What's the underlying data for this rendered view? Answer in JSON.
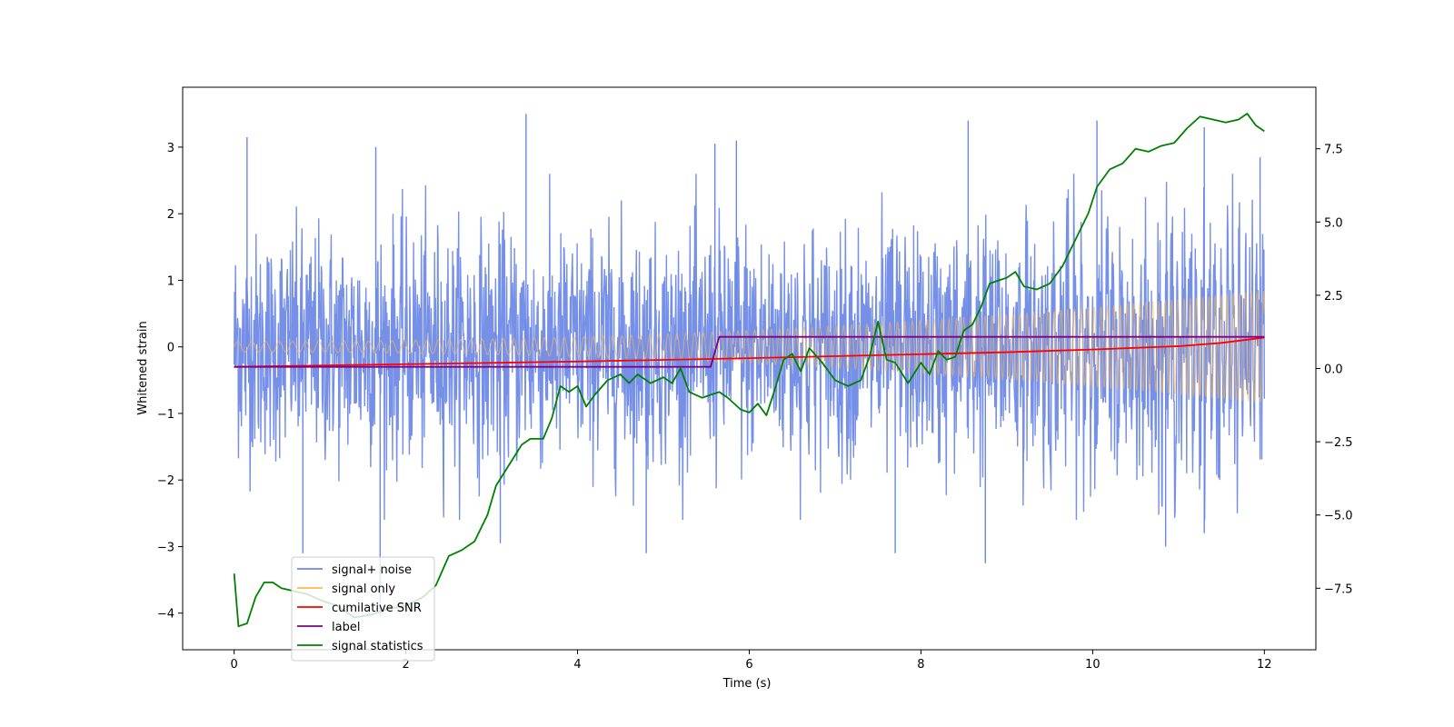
{
  "chart_data": {
    "type": "line",
    "title": "",
    "xlabel": "Time (s)",
    "ylabel": "Whitened strain",
    "y2label": "",
    "xlim": [
      -0.6,
      12.6
    ],
    "ylim": [
      -4.55,
      3.9
    ],
    "y2lim": [
      -9.6,
      9.6
    ],
    "x_ticks": [
      0,
      2,
      4,
      6,
      8,
      10,
      12
    ],
    "x_tick_labels": [
      "0",
      "2",
      "4",
      "6",
      "8",
      "10",
      "12"
    ],
    "y_ticks": [
      -4,
      -3,
      -2,
      -1,
      0,
      1,
      2,
      3
    ],
    "y_tick_labels": [
      "−4",
      "−3",
      "−2",
      "−1",
      "0",
      "1",
      "2",
      "3"
    ],
    "y2_ticks": [
      -7.5,
      -5.0,
      -2.5,
      0.0,
      2.5,
      5.0,
      7.5
    ],
    "y2_tick_labels": [
      "−7.5",
      "−5.0",
      "−2.5",
      "0.0",
      "2.5",
      "5.0",
      "7.5"
    ],
    "grid": false,
    "legend": {
      "placement": "lower-left",
      "entries": [
        {
          "label": "signal+ noise",
          "color": "#6a87e6"
        },
        {
          "label": "signal only",
          "color": "#ffb84d"
        },
        {
          "label": "cumilative SNR",
          "color": "#ff0000"
        },
        {
          "label": "label",
          "color": "#800080"
        },
        {
          "label": "signal statistics",
          "color": "#008000"
        }
      ]
    },
    "series": [
      {
        "name": "signal+ noise",
        "axis": "left",
        "color": "#6a87e6",
        "description_visible": "dense noise trace between about -3.2 and 3.5",
        "t_range": [
          0,
          12
        ],
        "spike_highs": [
          [
            0.15,
            3.15
          ],
          [
            1.65,
            3.0
          ],
          [
            3.4,
            3.5
          ],
          [
            5.6,
            3.05
          ],
          [
            5.85,
            3.1
          ],
          [
            8.55,
            3.4
          ],
          [
            10.05,
            3.4
          ],
          [
            11.3,
            3.3
          ],
          [
            11.95,
            2.85
          ]
        ],
        "spike_lows": [
          [
            0.8,
            -3.1
          ],
          [
            1.7,
            -4.05
          ],
          [
            3.1,
            -2.95
          ],
          [
            4.8,
            -3.1
          ],
          [
            7.7,
            -3.1
          ],
          [
            8.75,
            -3.25
          ],
          [
            10.85,
            -3.0
          ],
          [
            11.3,
            -2.8
          ]
        ]
      },
      {
        "name": "signal only",
        "axis": "left",
        "color": "#ffb84d",
        "description_visible": "chirp oscillation, amplitude growing from about 0.1 to 0.8",
        "t_range": [
          0,
          12
        ],
        "amplitude_start": 0.08,
        "amplitude_end": 0.85
      },
      {
        "name": "cumilative SNR",
        "axis": "left",
        "color": "#ff0000",
        "x": [
          0,
          2,
          4,
          6,
          8,
          9,
          10,
          11,
          11.5,
          12
        ],
        "y": [
          -0.3,
          -0.26,
          -0.22,
          -0.17,
          -0.11,
          -0.08,
          -0.04,
          0.01,
          0.06,
          0.14
        ]
      },
      {
        "name": "label",
        "axis": "left",
        "color": "#800080",
        "x": [
          0,
          5.55,
          5.65,
          12
        ],
        "y": [
          -0.3,
          -0.3,
          0.15,
          0.15
        ]
      },
      {
        "name": "signal statistics",
        "axis": "right",
        "color": "#008000",
        "x": [
          0,
          0.05,
          0.15,
          0.25,
          0.35,
          0.45,
          0.55,
          0.7,
          0.85,
          1.0,
          1.2,
          1.4,
          1.6,
          1.8,
          2.0,
          2.2,
          2.35,
          2.5,
          2.65,
          2.8,
          2.95,
          3.05,
          3.2,
          3.35,
          3.45,
          3.6,
          3.7,
          3.8,
          3.9,
          4.0,
          4.1,
          4.2,
          4.35,
          4.5,
          4.6,
          4.7,
          4.85,
          5.0,
          5.1,
          5.2,
          5.3,
          5.45,
          5.55,
          5.65,
          5.75,
          5.9,
          6.0,
          6.1,
          6.2,
          6.3,
          6.4,
          6.5,
          6.6,
          6.7,
          6.85,
          7.0,
          7.15,
          7.3,
          7.4,
          7.5,
          7.6,
          7.7,
          7.85,
          8.0,
          8.1,
          8.2,
          8.3,
          8.4,
          8.5,
          8.6,
          8.7,
          8.8,
          8.9,
          9.0,
          9.1,
          9.2,
          9.35,
          9.5,
          9.65,
          9.8,
          9.95,
          10.05,
          10.2,
          10.35,
          10.5,
          10.65,
          10.8,
          10.95,
          11.1,
          11.25,
          11.4,
          11.55,
          11.7,
          11.8,
          11.9,
          12.0
        ],
        "y": [
          -7.0,
          -8.8,
          -8.7,
          -7.8,
          -7.3,
          -7.3,
          -7.5,
          -7.6,
          -7.7,
          -7.9,
          -8.1,
          -8.5,
          -8.4,
          -8.2,
          -8.1,
          -7.8,
          -7.4,
          -6.4,
          -6.2,
          -5.9,
          -5.0,
          -4.0,
          -3.3,
          -2.6,
          -2.4,
          -2.4,
          -1.7,
          -0.6,
          -0.8,
          -0.6,
          -1.3,
          -0.9,
          -0.4,
          -0.2,
          -0.5,
          -0.2,
          -0.5,
          -0.3,
          -0.5,
          0.0,
          -0.8,
          -1.0,
          -0.9,
          -0.8,
          -1.0,
          -1.4,
          -1.5,
          -1.2,
          -1.6,
          -0.7,
          0.3,
          0.5,
          -0.1,
          0.7,
          0.2,
          -0.4,
          -0.6,
          -0.4,
          0.4,
          1.6,
          0.3,
          0.2,
          -0.5,
          0.2,
          -0.2,
          0.6,
          0.3,
          0.4,
          1.3,
          1.5,
          2.1,
          2.9,
          3.0,
          3.1,
          3.3,
          2.8,
          2.7,
          2.9,
          3.5,
          4.4,
          5.3,
          6.2,
          6.8,
          7.0,
          7.5,
          7.4,
          7.6,
          7.7,
          8.2,
          8.6,
          8.5,
          8.4,
          8.5,
          8.7,
          8.3,
          8.1
        ]
      }
    ]
  }
}
